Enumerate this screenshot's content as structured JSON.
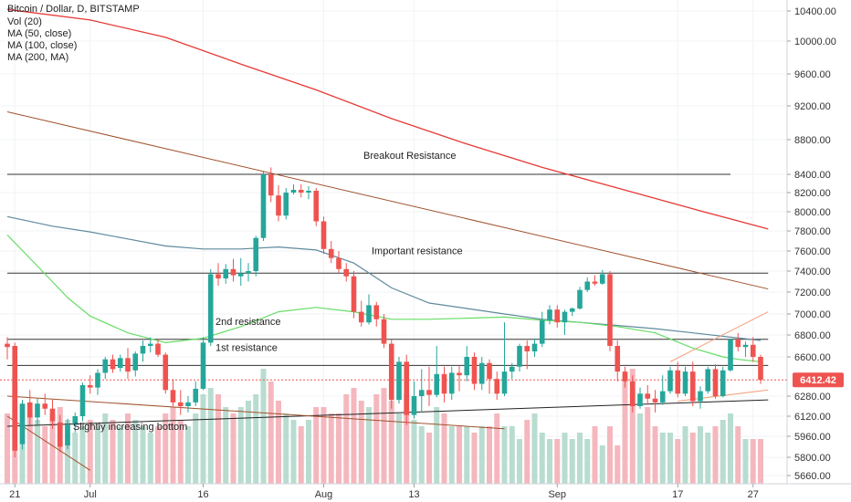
{
  "chart_data": {
    "type": "candlestick",
    "title": "Bitcoin / Dollar, D, BITSTAMP",
    "legend": [
      "Vol (20)",
      "MA (50, close)",
      "MA (100, close)",
      "MA (200, MA)"
    ],
    "y_axis": {
      "ticks": [
        5660,
        5800,
        5960,
        6120,
        6280,
        6600,
        6800,
        7000,
        7200,
        7400,
        7600,
        7800,
        8000,
        8200,
        8400,
        8800,
        9200,
        9600,
        10000,
        10400
      ],
      "tick_labels": [
        "5660.00",
        "5800.00",
        "5960.00",
        "6120.00",
        "6280.00",
        "6600.00",
        "6800.00",
        "7000.00",
        "7200.00",
        "7400.00",
        "7600.00",
        "7800.00",
        "8000.00",
        "8200.00",
        "8400.00",
        "8800.00",
        "9200.00",
        "9600.00",
        "10000.00",
        "10400.00"
      ],
      "range": [
        5600,
        10500
      ]
    },
    "x_axis": {
      "tick_labels": [
        "21",
        "Jul",
        "16",
        "Aug",
        "13",
        "Sep",
        "17",
        "27"
      ],
      "tick_days": [
        -10,
        0,
        15,
        31,
        43,
        62,
        78,
        88
      ]
    },
    "last_price": "6412.42",
    "colors": {
      "up": "#26a69a",
      "down": "#ef5350",
      "ma50": "#66dd66",
      "ma100": "#5f8a9c",
      "ma200": "#e53935",
      "trend": "#a0522d",
      "level": "#333333",
      "volume_up": "#b9dcd0",
      "volume_down": "#f5b7be",
      "last_price": "#ef5350"
    },
    "candles": [
      {
        "d": -11,
        "o": 6720,
        "h": 6780,
        "l": 6580,
        "c": 6690
      },
      {
        "d": -10,
        "o": 6700,
        "h": 6730,
        "l": 5800,
        "c": 5850
      },
      {
        "d": -9,
        "o": 5900,
        "h": 6250,
        "l": 5860,
        "c": 6220
      },
      {
        "d": -8,
        "o": 6230,
        "h": 6330,
        "l": 6050,
        "c": 6110
      },
      {
        "d": -7,
        "o": 6110,
        "h": 6260,
        "l": 6050,
        "c": 6220
      },
      {
        "d": -6,
        "o": 6220,
        "h": 6300,
        "l": 6130,
        "c": 6180
      },
      {
        "d": -5,
        "o": 6180,
        "h": 6250,
        "l": 6020,
        "c": 6080
      },
      {
        "d": -4,
        "o": 6070,
        "h": 6130,
        "l": 5840,
        "c": 5880
      },
      {
        "d": -3,
        "o": 5890,
        "h": 6100,
        "l": 5860,
        "c": 6050
      },
      {
        "d": -2,
        "o": 6050,
        "h": 6150,
        "l": 5990,
        "c": 6120
      },
      {
        "d": -1,
        "o": 6120,
        "h": 6390,
        "l": 6080,
        "c": 6370
      },
      {
        "d": 0,
        "o": 6370,
        "h": 6450,
        "l": 6300,
        "c": 6350
      },
      {
        "d": 1,
        "o": 6350,
        "h": 6500,
        "l": 6290,
        "c": 6470
      },
      {
        "d": 2,
        "o": 6470,
        "h": 6600,
        "l": 6420,
        "c": 6580
      },
      {
        "d": 3,
        "o": 6580,
        "h": 6620,
        "l": 6470,
        "c": 6500
      },
      {
        "d": 4,
        "o": 6510,
        "h": 6620,
        "l": 6480,
        "c": 6590
      },
      {
        "d": 5,
        "o": 6590,
        "h": 6680,
        "l": 6420,
        "c": 6480
      },
      {
        "d": 6,
        "o": 6490,
        "h": 6650,
        "l": 6440,
        "c": 6630
      },
      {
        "d": 7,
        "o": 6630,
        "h": 6750,
        "l": 6560,
        "c": 6700
      },
      {
        "d": 8,
        "o": 6700,
        "h": 6780,
        "l": 6640,
        "c": 6720
      },
      {
        "d": 9,
        "o": 6720,
        "h": 6760,
        "l": 6600,
        "c": 6620
      },
      {
        "d": 10,
        "o": 6620,
        "h": 6640,
        "l": 6300,
        "c": 6330
      },
      {
        "d": 11,
        "o": 6330,
        "h": 6420,
        "l": 6200,
        "c": 6230
      },
      {
        "d": 12,
        "o": 6230,
        "h": 6330,
        "l": 6130,
        "c": 6200
      },
      {
        "d": 13,
        "o": 6200,
        "h": 6280,
        "l": 6150,
        "c": 6230
      },
      {
        "d": 14,
        "o": 6230,
        "h": 6400,
        "l": 6200,
        "c": 6340
      },
      {
        "d": 15,
        "o": 6340,
        "h": 6780,
        "l": 6330,
        "c": 6730
      },
      {
        "d": 16,
        "o": 6730,
        "h": 7420,
        "l": 6700,
        "c": 7370
      },
      {
        "d": 17,
        "o": 7370,
        "h": 7480,
        "l": 7260,
        "c": 7330
      },
      {
        "d": 18,
        "o": 7330,
        "h": 7470,
        "l": 7280,
        "c": 7420
      },
      {
        "d": 19,
        "o": 7420,
        "h": 7520,
        "l": 7300,
        "c": 7360
      },
      {
        "d": 20,
        "o": 7350,
        "h": 7530,
        "l": 7260,
        "c": 7380
      },
      {
        "d": 21,
        "o": 7380,
        "h": 7480,
        "l": 7300,
        "c": 7400
      },
      {
        "d": 22,
        "o": 7400,
        "h": 7750,
        "l": 7350,
        "c": 7730
      },
      {
        "d": 23,
        "o": 7730,
        "h": 8440,
        "l": 7700,
        "c": 8400
      },
      {
        "d": 24,
        "o": 8400,
        "h": 8480,
        "l": 8100,
        "c": 8170
      },
      {
        "d": 25,
        "o": 8170,
        "h": 8280,
        "l": 7900,
        "c": 7960
      },
      {
        "d": 26,
        "o": 7960,
        "h": 8250,
        "l": 7920,
        "c": 8200
      },
      {
        "d": 27,
        "o": 8200,
        "h": 8290,
        "l": 8180,
        "c": 8230
      },
      {
        "d": 28,
        "o": 8230,
        "h": 8290,
        "l": 8150,
        "c": 8200
      },
      {
        "d": 29,
        "o": 8200,
        "h": 8270,
        "l": 8130,
        "c": 8220
      },
      {
        "d": 30,
        "o": 8220,
        "h": 8250,
        "l": 7850,
        "c": 7900
      },
      {
        "d": 31,
        "o": 7900,
        "h": 7950,
        "l": 7570,
        "c": 7620
      },
      {
        "d": 32,
        "o": 7620,
        "h": 7700,
        "l": 7480,
        "c": 7530
      },
      {
        "d": 33,
        "o": 7530,
        "h": 7600,
        "l": 7380,
        "c": 7420
      },
      {
        "d": 34,
        "o": 7420,
        "h": 7480,
        "l": 7300,
        "c": 7350
      },
      {
        "d": 35,
        "o": 7350,
        "h": 7400,
        "l": 6960,
        "c": 7020
      },
      {
        "d": 36,
        "o": 7020,
        "h": 7120,
        "l": 6880,
        "c": 6920
      },
      {
        "d": 37,
        "o": 6920,
        "h": 7180,
        "l": 6900,
        "c": 7080
      },
      {
        "d": 38,
        "o": 7080,
        "h": 7110,
        "l": 6880,
        "c": 6950
      },
      {
        "d": 39,
        "o": 6950,
        "h": 7000,
        "l": 6680,
        "c": 6720
      },
      {
        "d": 40,
        "o": 6720,
        "h": 6760,
        "l": 6180,
        "c": 6250
      },
      {
        "d": 41,
        "o": 6250,
        "h": 6600,
        "l": 6220,
        "c": 6560
      },
      {
        "d": 42,
        "o": 6560,
        "h": 6620,
        "l": 6050,
        "c": 6130
      },
      {
        "d": 43,
        "o": 6130,
        "h": 6400,
        "l": 6100,
        "c": 6280
      },
      {
        "d": 44,
        "o": 6280,
        "h": 6500,
        "l": 6150,
        "c": 6330
      },
      {
        "d": 45,
        "o": 6330,
        "h": 6520,
        "l": 6200,
        "c": 6290
      },
      {
        "d": 46,
        "o": 6290,
        "h": 6700,
        "l": 6270,
        "c": 6460
      },
      {
        "d": 47,
        "o": 6460,
        "h": 6520,
        "l": 6230,
        "c": 6300
      },
      {
        "d": 48,
        "o": 6300,
        "h": 6520,
        "l": 6250,
        "c": 6470
      },
      {
        "d": 49,
        "o": 6470,
        "h": 6530,
        "l": 6320,
        "c": 6450
      },
      {
        "d": 50,
        "o": 6450,
        "h": 6700,
        "l": 6400,
        "c": 6600
      },
      {
        "d": 51,
        "o": 6600,
        "h": 6640,
        "l": 6330,
        "c": 6380
      },
      {
        "d": 52,
        "o": 6380,
        "h": 6600,
        "l": 6330,
        "c": 6550
      },
      {
        "d": 53,
        "o": 6550,
        "h": 6580,
        "l": 6300,
        "c": 6420
      },
      {
        "d": 54,
        "o": 6420,
        "h": 6480,
        "l": 6250,
        "c": 6300
      },
      {
        "d": 55,
        "o": 6300,
        "h": 6920,
        "l": 6280,
        "c": 6480
      },
      {
        "d": 56,
        "o": 6480,
        "h": 6550,
        "l": 6420,
        "c": 6520
      },
      {
        "d": 57,
        "o": 6520,
        "h": 6720,
        "l": 6480,
        "c": 6700
      },
      {
        "d": 58,
        "o": 6700,
        "h": 6750,
        "l": 6500,
        "c": 6650
      },
      {
        "d": 59,
        "o": 6650,
        "h": 6770,
        "l": 6600,
        "c": 6720
      },
      {
        "d": 60,
        "o": 6720,
        "h": 7020,
        "l": 6690,
        "c": 6940
      },
      {
        "d": 61,
        "o": 6940,
        "h": 7080,
        "l": 6900,
        "c": 7040
      },
      {
        "d": 62,
        "o": 7040,
        "h": 7080,
        "l": 6870,
        "c": 6920
      },
      {
        "d": 63,
        "o": 6920,
        "h": 7040,
        "l": 6800,
        "c": 7020
      },
      {
        "d": 64,
        "o": 7020,
        "h": 7060,
        "l": 6980,
        "c": 7050
      },
      {
        "d": 65,
        "o": 7050,
        "h": 7250,
        "l": 7040,
        "c": 7220
      },
      {
        "d": 66,
        "o": 7220,
        "h": 7340,
        "l": 7200,
        "c": 7300
      },
      {
        "d": 67,
        "o": 7300,
        "h": 7360,
        "l": 7260,
        "c": 7280
      },
      {
        "d": 68,
        "o": 7280,
        "h": 7410,
        "l": 7270,
        "c": 7370
      },
      {
        "d": 69,
        "o": 7370,
        "h": 7400,
        "l": 6650,
        "c": 6700
      },
      {
        "d": 70,
        "o": 6700,
        "h": 6750,
        "l": 6400,
        "c": 6480
      },
      {
        "d": 71,
        "o": 6480,
        "h": 6520,
        "l": 6350,
        "c": 6400
      },
      {
        "d": 72,
        "o": 6400,
        "h": 6450,
        "l": 6150,
        "c": 6200
      },
      {
        "d": 73,
        "o": 6200,
        "h": 6350,
        "l": 6180,
        "c": 6300
      },
      {
        "d": 74,
        "o": 6300,
        "h": 6370,
        "l": 6210,
        "c": 6260
      },
      {
        "d": 75,
        "o": 6260,
        "h": 6330,
        "l": 6150,
        "c": 6230
      },
      {
        "d": 76,
        "o": 6230,
        "h": 6450,
        "l": 6210,
        "c": 6320
      },
      {
        "d": 77,
        "o": 6320,
        "h": 6520,
        "l": 6300,
        "c": 6490
      },
      {
        "d": 78,
        "o": 6490,
        "h": 6560,
        "l": 6270,
        "c": 6300
      },
      {
        "d": 79,
        "o": 6300,
        "h": 6520,
        "l": 6280,
        "c": 6480
      },
      {
        "d": 80,
        "o": 6480,
        "h": 6560,
        "l": 6200,
        "c": 6240
      },
      {
        "d": 81,
        "o": 6240,
        "h": 6360,
        "l": 6180,
        "c": 6320
      },
      {
        "d": 82,
        "o": 6320,
        "h": 6520,
        "l": 6300,
        "c": 6500
      },
      {
        "d": 83,
        "o": 6500,
        "h": 6540,
        "l": 6260,
        "c": 6280
      },
      {
        "d": 84,
        "o": 6280,
        "h": 6520,
        "l": 6270,
        "c": 6490
      },
      {
        "d": 85,
        "o": 6490,
        "h": 6760,
        "l": 6480,
        "c": 6760
      },
      {
        "d": 86,
        "o": 6760,
        "h": 6820,
        "l": 6650,
        "c": 6690
      },
      {
        "d": 87,
        "o": 6690,
        "h": 6740,
        "l": 6600,
        "c": 6710
      },
      {
        "d": 88,
        "o": 6710,
        "h": 6780,
        "l": 6560,
        "c": 6600
      },
      {
        "d": 89,
        "o": 6600,
        "h": 6620,
        "l": 6380,
        "c": 6412
      }
    ],
    "volume_relative": [
      0.55,
      0.8,
      0.62,
      0.55,
      0.5,
      0.45,
      0.55,
      0.6,
      0.5,
      0.4,
      0.45,
      0.5,
      0.45,
      0.55,
      0.5,
      0.45,
      0.55,
      0.5,
      0.45,
      0.4,
      0.45,
      0.55,
      0.6,
      0.5,
      0.45,
      0.55,
      0.7,
      0.75,
      0.7,
      0.6,
      0.55,
      0.6,
      0.65,
      0.7,
      0.9,
      0.8,
      0.65,
      0.55,
      0.5,
      0.45,
      0.5,
      0.6,
      0.6,
      0.55,
      0.55,
      0.7,
      0.75,
      0.65,
      0.6,
      0.7,
      0.75,
      0.65,
      0.55,
      0.7,
      0.5,
      0.45,
      0.4,
      0.6,
      0.55,
      0.45,
      0.45,
      0.45,
      0.4,
      0.45,
      0.45,
      0.55,
      0.45,
      0.45,
      0.35,
      0.5,
      0.55,
      0.4,
      0.35,
      0.35,
      0.4,
      0.35,
      0.4,
      0.35,
      0.45,
      0.3,
      0.45,
      0.3,
      0.85,
      0.9,
      0.55,
      0.6,
      0.45,
      0.4,
      0.4,
      0.35,
      0.45,
      0.4,
      0.45,
      0.4,
      0.45,
      0.5,
      0.55,
      0.45,
      0.35,
      0.35,
      0.35
    ],
    "ma200": [
      [
        -11,
        10420
      ],
      [
        0,
        10280
      ],
      [
        10,
        10050
      ],
      [
        20,
        9720
      ],
      [
        30,
        9400
      ],
      [
        40,
        9050
      ],
      [
        50,
        8750
      ],
      [
        60,
        8480
      ],
      [
        70,
        8250
      ],
      [
        80,
        8030
      ],
      [
        90,
        7820
      ]
    ],
    "ma100": [
      [
        -11,
        7950
      ],
      [
        -5,
        7850
      ],
      [
        0,
        7790
      ],
      [
        5,
        7720
      ],
      [
        10,
        7650
      ],
      [
        15,
        7620
      ],
      [
        20,
        7620
      ],
      [
        25,
        7640
      ],
      [
        30,
        7610
      ],
      [
        35,
        7480
      ],
      [
        40,
        7240
      ],
      [
        45,
        7100
      ],
      [
        50,
        7050
      ],
      [
        55,
        7000
      ],
      [
        60,
        6950
      ],
      [
        65,
        6920
      ],
      [
        70,
        6890
      ],
      [
        75,
        6860
      ],
      [
        80,
        6820
      ],
      [
        85,
        6780
      ],
      [
        89,
        6750
      ]
    ],
    "ma50": [
      [
        -11,
        7760
      ],
      [
        -7,
        7450
      ],
      [
        -3,
        7150
      ],
      [
        0,
        6980
      ],
      [
        5,
        6820
      ],
      [
        10,
        6730
      ],
      [
        15,
        6770
      ],
      [
        20,
        6880
      ],
      [
        25,
        7020
      ],
      [
        30,
        7060
      ],
      [
        35,
        7020
      ],
      [
        40,
        6950
      ],
      [
        45,
        6950
      ],
      [
        50,
        6960
      ],
      [
        55,
        6970
      ],
      [
        60,
        6940
      ],
      [
        65,
        6920
      ],
      [
        70,
        6880
      ],
      [
        75,
        6820
      ],
      [
        80,
        6680
      ],
      [
        84,
        6600
      ],
      [
        86,
        6580
      ],
      [
        89,
        6560
      ]
    ],
    "trend_lines": [
      {
        "name": "upper-trend",
        "from": [
          -11,
          9130
        ],
        "to": [
          90,
          7230
        ]
      },
      {
        "name": "slightly-increasing-bottom",
        "from": [
          -11,
          6040
        ],
        "to": [
          90,
          6250
        ]
      },
      {
        "name": "lower-short-trend",
        "from": [
          -11,
          6280
        ],
        "to": [
          55,
          6020
        ]
      },
      {
        "name": "steep-down",
        "from": [
          -11,
          6120
        ],
        "to": [
          0,
          5700
        ]
      },
      {
        "name": "rising-channel-low",
        "from": [
          78,
          6240
        ],
        "to": [
          90,
          6330
        ]
      },
      {
        "name": "rising-channel-high",
        "from": [
          77,
          6560
        ],
        "to": [
          90,
          7020
        ]
      }
    ],
    "levels": [
      {
        "name": "breakout-resistance",
        "price": 8400,
        "from": -11,
        "to": 85,
        "label": "Breakout Resistance"
      },
      {
        "name": "important-resistance",
        "price": 7380,
        "from": -11,
        "to": 90,
        "label": "Important resistance"
      },
      {
        "name": "2nd-resistance",
        "price": 6760,
        "from": -11,
        "to": 90,
        "label": "2nd resistance"
      },
      {
        "name": "1st-resistance",
        "price": 6530,
        "from": -11,
        "to": 90,
        "label": "1st resistance"
      }
    ],
    "annotation_bottom": "Slightly increasing bottom"
  }
}
